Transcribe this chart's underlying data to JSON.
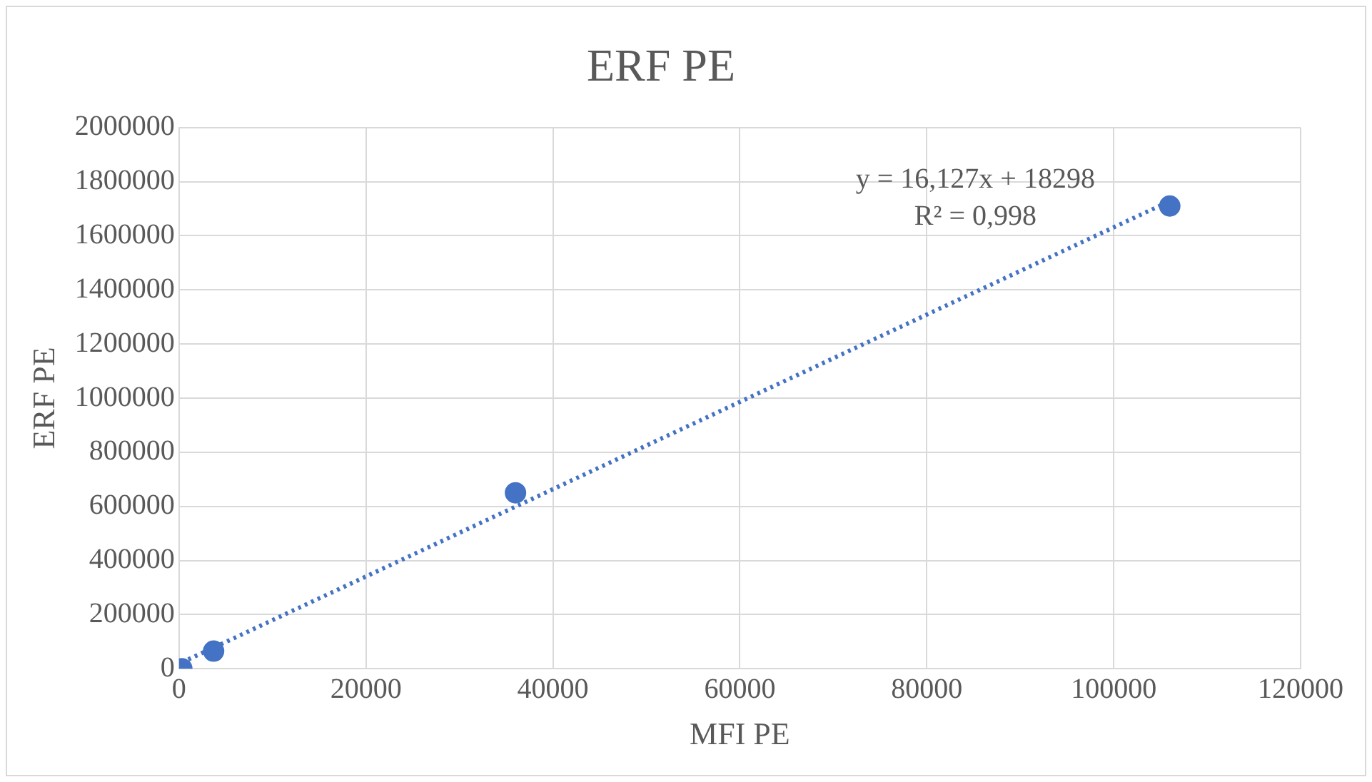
{
  "chart_data": {
    "type": "scatter",
    "title": "ERF PE",
    "xlabel": "MFI PE",
    "ylabel": "ERF PE",
    "annotations": [
      "y = 16,127x + 18298",
      "R² = 0,998"
    ],
    "series": [
      {
        "type": "scatter",
        "color": "#4472c4",
        "x": [
          300,
          3700,
          36000,
          106000
        ],
        "values": [
          0,
          65000,
          650000,
          1710000
        ],
        "marker": "circle"
      },
      {
        "type": "line",
        "color": "#4472c4",
        "x": [
          300,
          106000
        ],
        "values": [
          23000,
          1728000
        ],
        "line_style": "dotted",
        "marker": "none"
      }
    ],
    "xlim": [
      0,
      120000
    ],
    "xticks": [
      0,
      20000,
      40000,
      60000,
      80000,
      100000,
      120000
    ],
    "ylim": [
      0,
      2000000
    ],
    "yticks": [
      0,
      200000,
      400000,
      600000,
      800000,
      1000000,
      1200000,
      1400000,
      1600000,
      1800000,
      2000000
    ],
    "grid": true,
    "legend": false
  }
}
